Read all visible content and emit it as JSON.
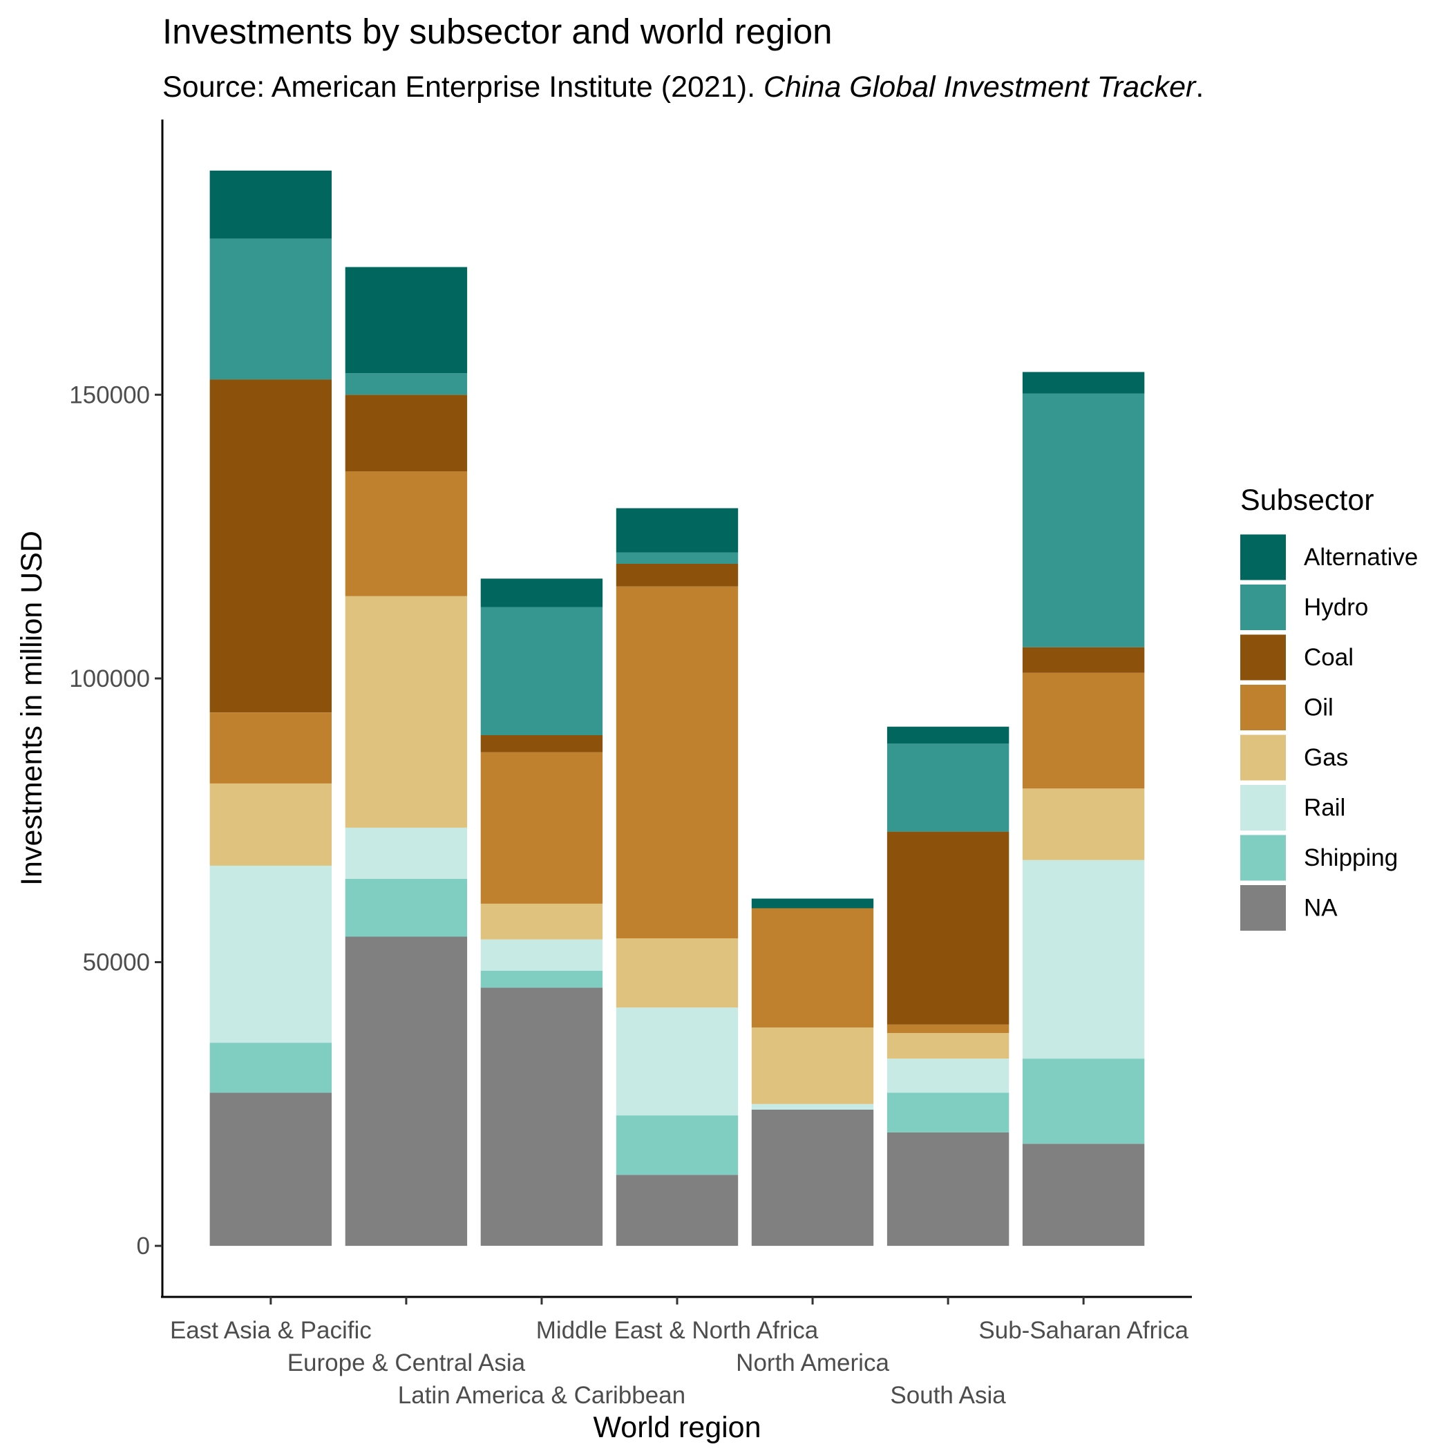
{
  "chart_data": {
    "type": "bar",
    "stacked": true,
    "title": "Investments by subsector and world region",
    "subtitle": {
      "prefix": "Source: American Enterprise Institute (2021). ",
      "italic": "China Global Investment Tracker",
      "suffix": "."
    },
    "xlabel": "World region",
    "ylabel": "Investments in million USD",
    "ylim": [
      -9000,
      198500
    ],
    "y_ticks": [
      0,
      50000,
      100000,
      150000
    ],
    "y_tick_labels": [
      "0",
      "50000",
      "100000",
      "150000"
    ],
    "grid": false,
    "legend": {
      "title": "Subsector",
      "position": "right"
    },
    "categories": [
      "East Asia & Pacific",
      "Europe & Central Asia",
      "Latin America & Caribbean",
      "Middle East & North Africa",
      "North America",
      "South Asia",
      "Sub-Saharan Africa"
    ],
    "series": [
      {
        "name": "NA",
        "color": "#808080",
        "values": [
          27000,
          54500,
          45500,
          12500,
          24000,
          20000,
          18000
        ]
      },
      {
        "name": "Shipping",
        "color": "#80CDC1",
        "values": [
          8800,
          10200,
          3000,
          10500,
          0,
          7000,
          15000
        ]
      },
      {
        "name": "Rail",
        "color": "#C7EAE5",
        "values": [
          31200,
          9000,
          5500,
          19000,
          1000,
          6000,
          35000
        ]
      },
      {
        "name": "Gas",
        "color": "#DFC27D",
        "values": [
          14500,
          40800,
          6300,
          12200,
          13500,
          4500,
          12600
        ]
      },
      {
        "name": "Oil",
        "color": "#BF812D",
        "values": [
          12500,
          22000,
          26700,
          62000,
          21000,
          1500,
          20400
        ]
      },
      {
        "name": "Coal",
        "color": "#8C510A",
        "values": [
          58700,
          13500,
          3000,
          4000,
          0,
          34000,
          4500
        ]
      },
      {
        "name": "Hydro",
        "color": "#35978F",
        "values": [
          24800,
          3800,
          22600,
          2000,
          0,
          15500,
          44700
        ]
      },
      {
        "name": "Alternative",
        "color": "#01665E",
        "values": [
          12000,
          18700,
          5000,
          7800,
          1700,
          3000,
          3800
        ]
      }
    ],
    "legend_order": [
      "Alternative",
      "Hydro",
      "Coal",
      "Oil",
      "Gas",
      "Rail",
      "Shipping",
      "NA"
    ]
  }
}
